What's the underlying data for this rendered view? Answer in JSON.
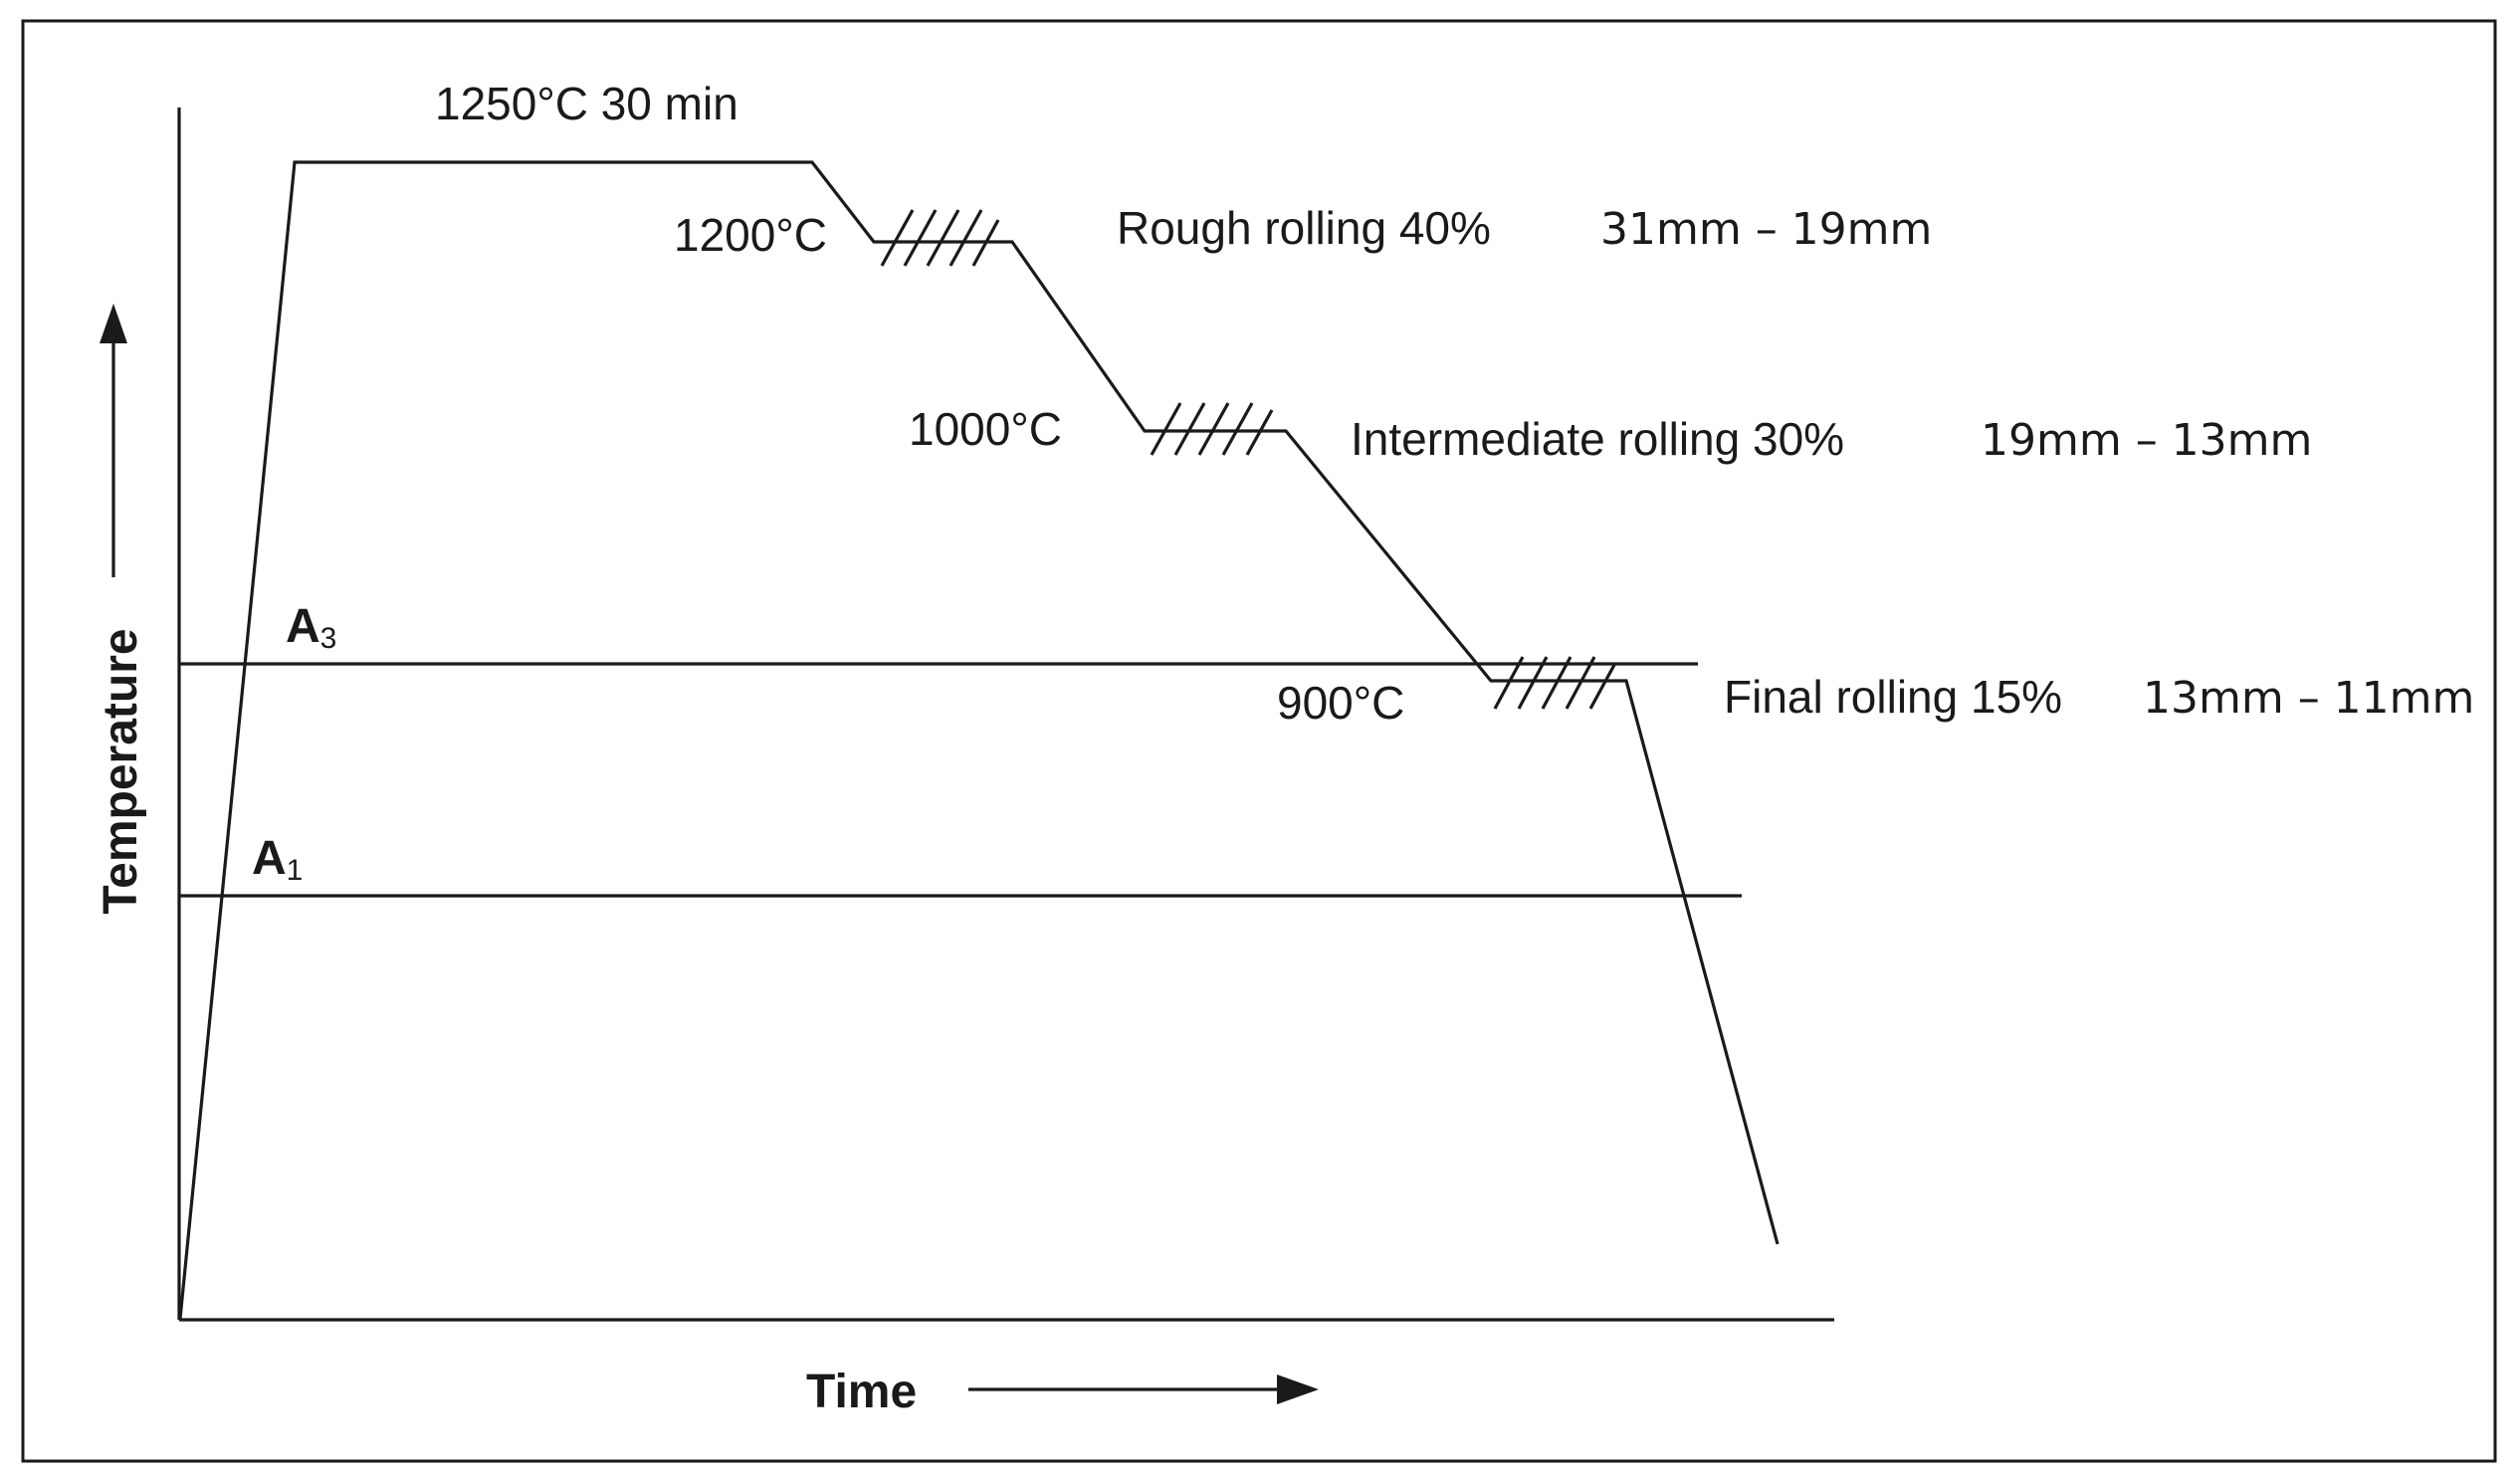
{
  "axes": {
    "y_label": "Temperature",
    "x_label": "Time"
  },
  "reference_lines": {
    "a3": {
      "letter": "A",
      "subscript": "3"
    },
    "a1": {
      "letter": "A",
      "subscript": "1"
    }
  },
  "soak": {
    "label": "1250°C 30 min"
  },
  "stages": [
    {
      "start_temp": "1200°C",
      "name": "Rough rolling 40%",
      "thickness": "31mm – 19mm"
    },
    {
      "start_temp": "1000°C",
      "name": "Intermediate rolling 30%",
      "thickness": "19mm – 13mm"
    },
    {
      "start_temp": "900°C",
      "name": "Final rolling 15%",
      "thickness": "13mm – 11mm"
    }
  ]
}
